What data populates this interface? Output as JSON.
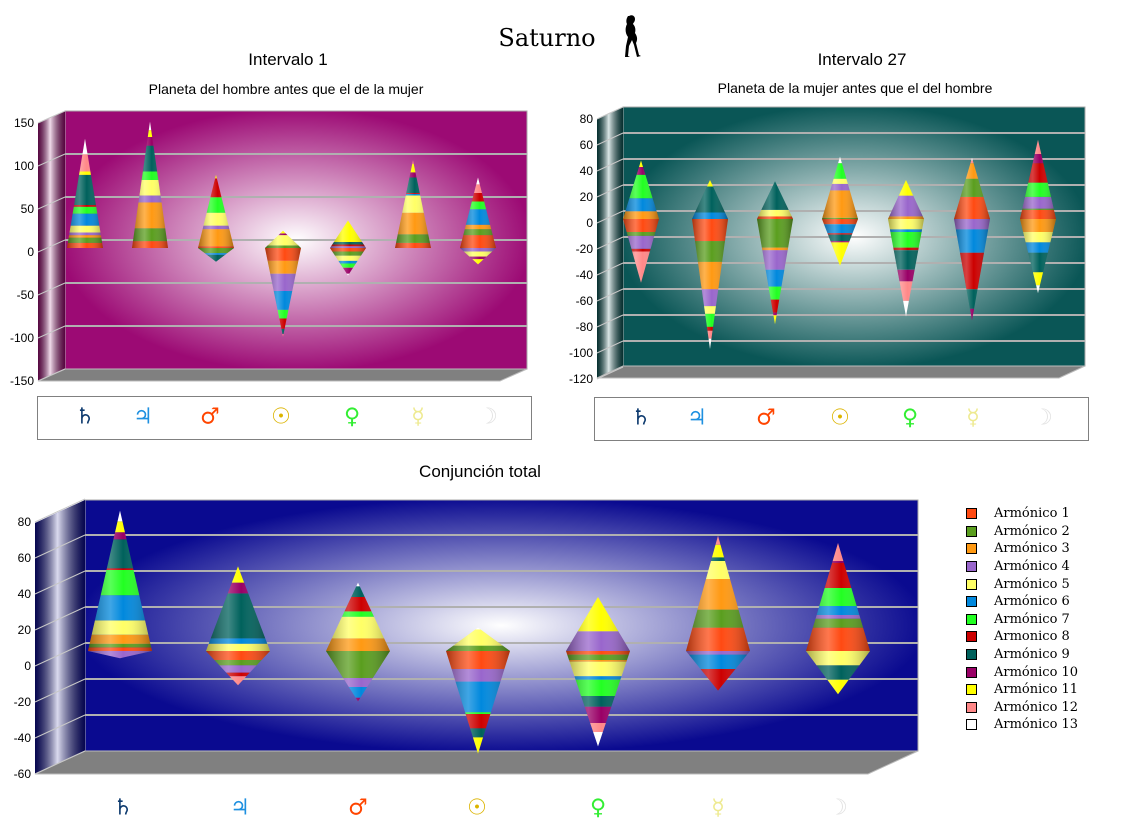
{
  "title": "Saturno",
  "harmonics": {
    "labels": [
      "Armónico 1",
      "Armónico 2",
      "Armónico 3",
      "Armónico 4",
      "Armónico 5",
      "Armónico 6",
      "Armónico 7",
      "Armonico 8",
      "Armónico 9",
      "Armónico 10",
      "Armónico 11",
      "Armónico 12",
      "Armónico 13"
    ],
    "colors": [
      "#ff4a12",
      "#5a9e1e",
      "#ff9912",
      "#9966cc",
      "#ffff66",
      "#0088dd",
      "#22ff22",
      "#cc0000",
      "#00615c",
      "#990066",
      "#ffff00",
      "#ff8888",
      "#ffffff"
    ]
  },
  "planets": [
    {
      "name": "Saturno",
      "symbol": "♄",
      "color": "#0d3a6e"
    },
    {
      "name": "Júpiter",
      "symbol": "♃",
      "color": "#1e90e0"
    },
    {
      "name": "Marte",
      "symbol": "♂",
      "color": "#ff4500"
    },
    {
      "name": "Sol",
      "symbol": "☉",
      "color": "#dcb400"
    },
    {
      "name": "Venus",
      "symbol": "♀",
      "color": "#33ee33"
    },
    {
      "name": "Mercurio",
      "symbol": "☿",
      "color": "#eeea90"
    },
    {
      "name": "Luna",
      "symbol": "☽",
      "color": "#e2e2e2"
    }
  ],
  "chart_data": [
    {
      "type": "bar",
      "subtype": "stacked-cone-3d",
      "title": "Intervalo 1",
      "subtitle": "Planeta del hombre antes que el de la mujer",
      "background": "#9c0a74",
      "ylim": [
        -150,
        150
      ],
      "yticks": [
        "150",
        "100",
        "50",
        "0",
        "-50",
        "-100",
        "-150"
      ],
      "ytick_values": [
        150,
        100,
        50,
        0,
        -50,
        -100,
        -150
      ],
      "series_by_planet": [
        [
          6,
          6,
          3,
          3,
          8,
          14,
          8,
          2,
          35,
          0,
          4,
          20,
          18
        ],
        [
          8,
          15,
          30,
          8,
          18,
          0,
          10,
          0,
          30,
          10,
          8,
          0,
          10
        ],
        [
          2,
          -6,
          20,
          4,
          15,
          -2,
          18,
          22,
          -8,
          0,
          4,
          0,
          0
        ],
        [
          -15,
          3,
          -15,
          -20,
          12,
          -22,
          -10,
          -12,
          -6,
          2,
          3,
          -3,
          0
        ],
        [
          -4,
          -5,
          0,
          2,
          -6,
          -3,
          -5,
          2,
          3,
          -7,
          25,
          0,
          -2
        ],
        [
          6,
          10,
          25,
          0,
          20,
          2,
          0,
          1,
          18,
          6,
          10,
          4,
          0
        ],
        [
          15,
          7,
          5,
          -4,
          -6,
          18,
          9,
          10,
          0,
          -3,
          -6,
          10,
          8
        ]
      ]
    },
    {
      "type": "bar",
      "subtype": "stacked-cone-3d",
      "title": "Intervalo 27",
      "subtitle": "Planeta de la mujer antes que el del hombre",
      "background": "#0a5656",
      "ylim": [
        -120,
        80
      ],
      "yticks": [
        "80",
        "60",
        "40",
        "20",
        "0",
        "-20",
        "-40",
        "-60",
        "-80",
        "-100",
        "-120"
      ],
      "ytick_values": [
        80,
        60,
        40,
        20,
        0,
        -20,
        -40,
        -60,
        -80,
        -100,
        -120
      ],
      "series_by_planet": [
        [
          -10,
          -3,
          6,
          -10,
          0,
          10,
          18,
          -2,
          0,
          6,
          5,
          -24,
          0
        ],
        [
          -17,
          -16,
          -21,
          -13,
          -6,
          5,
          -10,
          -3,
          20,
          0,
          5,
          -6,
          -8
        ],
        [
          2,
          -22,
          -2,
          -15,
          5,
          -13,
          -10,
          -10,
          22,
          -2,
          -7,
          0,
          0
        ],
        [
          -4,
          1,
          21,
          5,
          4,
          -7,
          12,
          -1,
          -5,
          -1,
          -18,
          0,
          5
        ],
        [
          0,
          0,
          2,
          16,
          -8,
          -2,
          -12,
          -2,
          -15,
          -9,
          12,
          -15,
          -12
        ],
        [
          17,
          14,
          12,
          -8,
          0,
          -18,
          0,
          -28,
          -15,
          -9,
          0,
          2,
          2
        ],
        [
          7,
          1,
          -10,
          9,
          -8,
          -8,
          11,
          15,
          -15,
          7,
          -10,
          11,
          -6
        ]
      ]
    },
    {
      "type": "bar",
      "subtype": "stacked-cone-3d",
      "title": "Conjunción total",
      "subtitle": "",
      "background": "#0a0a90",
      "ylim": [
        -60,
        80
      ],
      "yticks": [
        "80",
        "60",
        "40",
        "20",
        "0",
        "-20",
        "-40",
        "-60"
      ],
      "ytick_values": [
        80,
        60,
        40,
        20,
        0,
        -20,
        -40,
        -60
      ],
      "series_by_planet": [
        [
          2,
          2,
          5,
          -4,
          8,
          14,
          14,
          1,
          16,
          4,
          6,
          0,
          6
        ],
        [
          -5,
          -3,
          0,
          -4,
          4,
          3,
          0,
          -2,
          25,
          6,
          9,
          -5,
          0
        ],
        [
          0,
          -15,
          7,
          -5,
          12,
          -6,
          3,
          8,
          6,
          -2,
          0,
          0,
          2
        ],
        [
          -10,
          3,
          0,
          -7,
          9,
          -17,
          -1,
          -8,
          -5,
          0,
          -9,
          0,
          1
        ],
        [
          -2,
          -3,
          -1,
          11,
          -8,
          -2,
          -9,
          0,
          -6,
          -9,
          19,
          -5,
          -8
        ],
        [
          13,
          10,
          17,
          -2,
          10,
          -8,
          0,
          -12,
          2,
          0,
          7,
          5,
          0
        ],
        [
          13,
          5,
          0,
          2,
          -8,
          5,
          10,
          14,
          -8,
          1,
          -8,
          10,
          0
        ]
      ]
    }
  ]
}
